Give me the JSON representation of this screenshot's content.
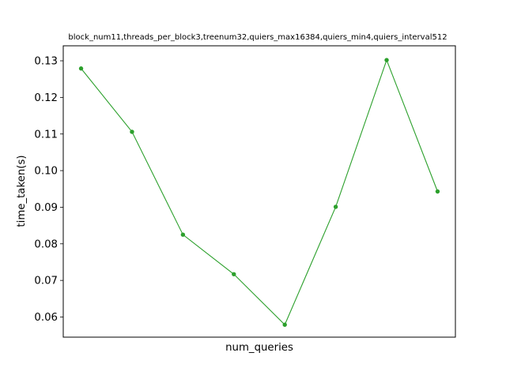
{
  "chart_data": {
    "type": "line",
    "title": "block_num11,threads_per_block3,treenum32,quiers_max16384,quiers_min4,quiers_interval512",
    "xlabel": "num_queries",
    "ylabel": "time_taken(s)",
    "x_ticks_visible": false,
    "ylim": [
      0.0545,
      0.1341
    ],
    "yticks": [
      0.06,
      0.07,
      0.08,
      0.09,
      0.1,
      0.11,
      0.12,
      0.13
    ],
    "ytick_labels": [
      "0.06",
      "0.07",
      "0.08",
      "0.09",
      "0.10",
      "0.11",
      "0.12",
      "0.13"
    ],
    "series": [
      {
        "color": "#2ca02c",
        "marker": "circle",
        "x": [
          1,
          2,
          3,
          4,
          5,
          6,
          7,
          8
        ],
        "y": [
          0.1279,
          0.1106,
          0.0825,
          0.0717,
          0.0579,
          0.0901,
          0.1302,
          0.0943
        ]
      }
    ]
  }
}
